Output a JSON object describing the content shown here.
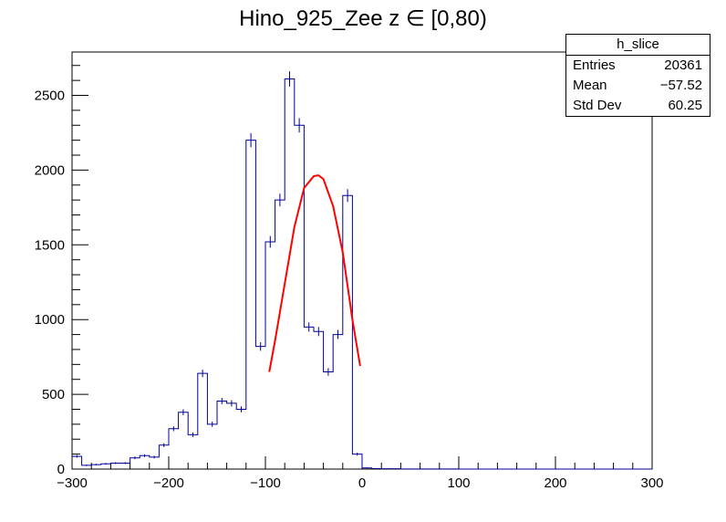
{
  "chart_data": {
    "type": "bar",
    "title": "Hino_925_Zee z  ∈ [0,80)",
    "xlabel": "",
    "ylabel": "",
    "xlim": [
      -300,
      300
    ],
    "ylim": [
      0,
      2790
    ],
    "xticks": [
      -300,
      -200,
      -100,
      0,
      100,
      200,
      300
    ],
    "yticks": [
      0,
      500,
      1000,
      1500,
      2000,
      2500
    ],
    "xtick_labels": [
      "−300",
      "−200",
      "−100",
      "0",
      "100",
      "200",
      "300"
    ],
    "ytick_labels": [
      "0",
      "500",
      "1000",
      "1500",
      "2000",
      "2500"
    ],
    "bin_width": 10,
    "bin_low_edges": [
      -300,
      -290,
      -280,
      -270,
      -260,
      -250,
      -240,
      -230,
      -220,
      -210,
      -200,
      -190,
      -180,
      -170,
      -160,
      -150,
      -140,
      -130,
      -120,
      -110,
      -100,
      -90,
      -80,
      -70,
      -60,
      -50,
      -40,
      -30,
      -20,
      -10,
      0,
      10,
      20,
      30,
      40,
      50,
      60,
      70,
      80,
      90,
      100,
      110,
      120,
      130,
      140,
      150,
      160,
      170,
      180,
      190,
      200,
      210,
      220,
      230,
      240,
      250,
      260,
      270,
      280,
      290
    ],
    "series": [
      {
        "values": [
          85,
          25,
          30,
          35,
          40,
          40,
          75,
          90,
          80,
          160,
          270,
          380,
          230,
          640,
          300,
          455,
          440,
          400,
          2200,
          820,
          1520,
          1800,
          2610,
          2300,
          950,
          920,
          650,
          900,
          1830,
          100,
          8,
          3,
          2,
          2,
          1,
          1,
          1,
          1,
          1,
          1,
          0,
          0,
          0,
          0,
          0,
          0,
          0,
          0,
          0,
          0,
          0,
          0,
          0,
          0,
          0,
          0,
          0,
          0,
          0,
          0
        ],
        "color": "#000099"
      }
    ],
    "fit": {
      "type": "gaussian",
      "color": "#ff0000",
      "x_range": [
        -96,
        -2
      ],
      "x": [
        -96,
        -90,
        -80,
        -70,
        -60,
        -50,
        -45,
        -40,
        -30,
        -20,
        -10,
        -2
      ],
      "y": [
        650,
        860,
        1240,
        1620,
        1880,
        1960,
        1965,
        1940,
        1760,
        1450,
        1000,
        690
      ]
    },
    "stats": {
      "name": "h_slice",
      "entries_label": "Entries",
      "entries": "20361",
      "mean_label": "Mean",
      "mean": "−57.52",
      "stddev_label": "Std Dev",
      "stddev": "60.25"
    },
    "colors": {
      "histogram": "#000099",
      "fit": "#ff0000",
      "axis": "#000000"
    }
  }
}
